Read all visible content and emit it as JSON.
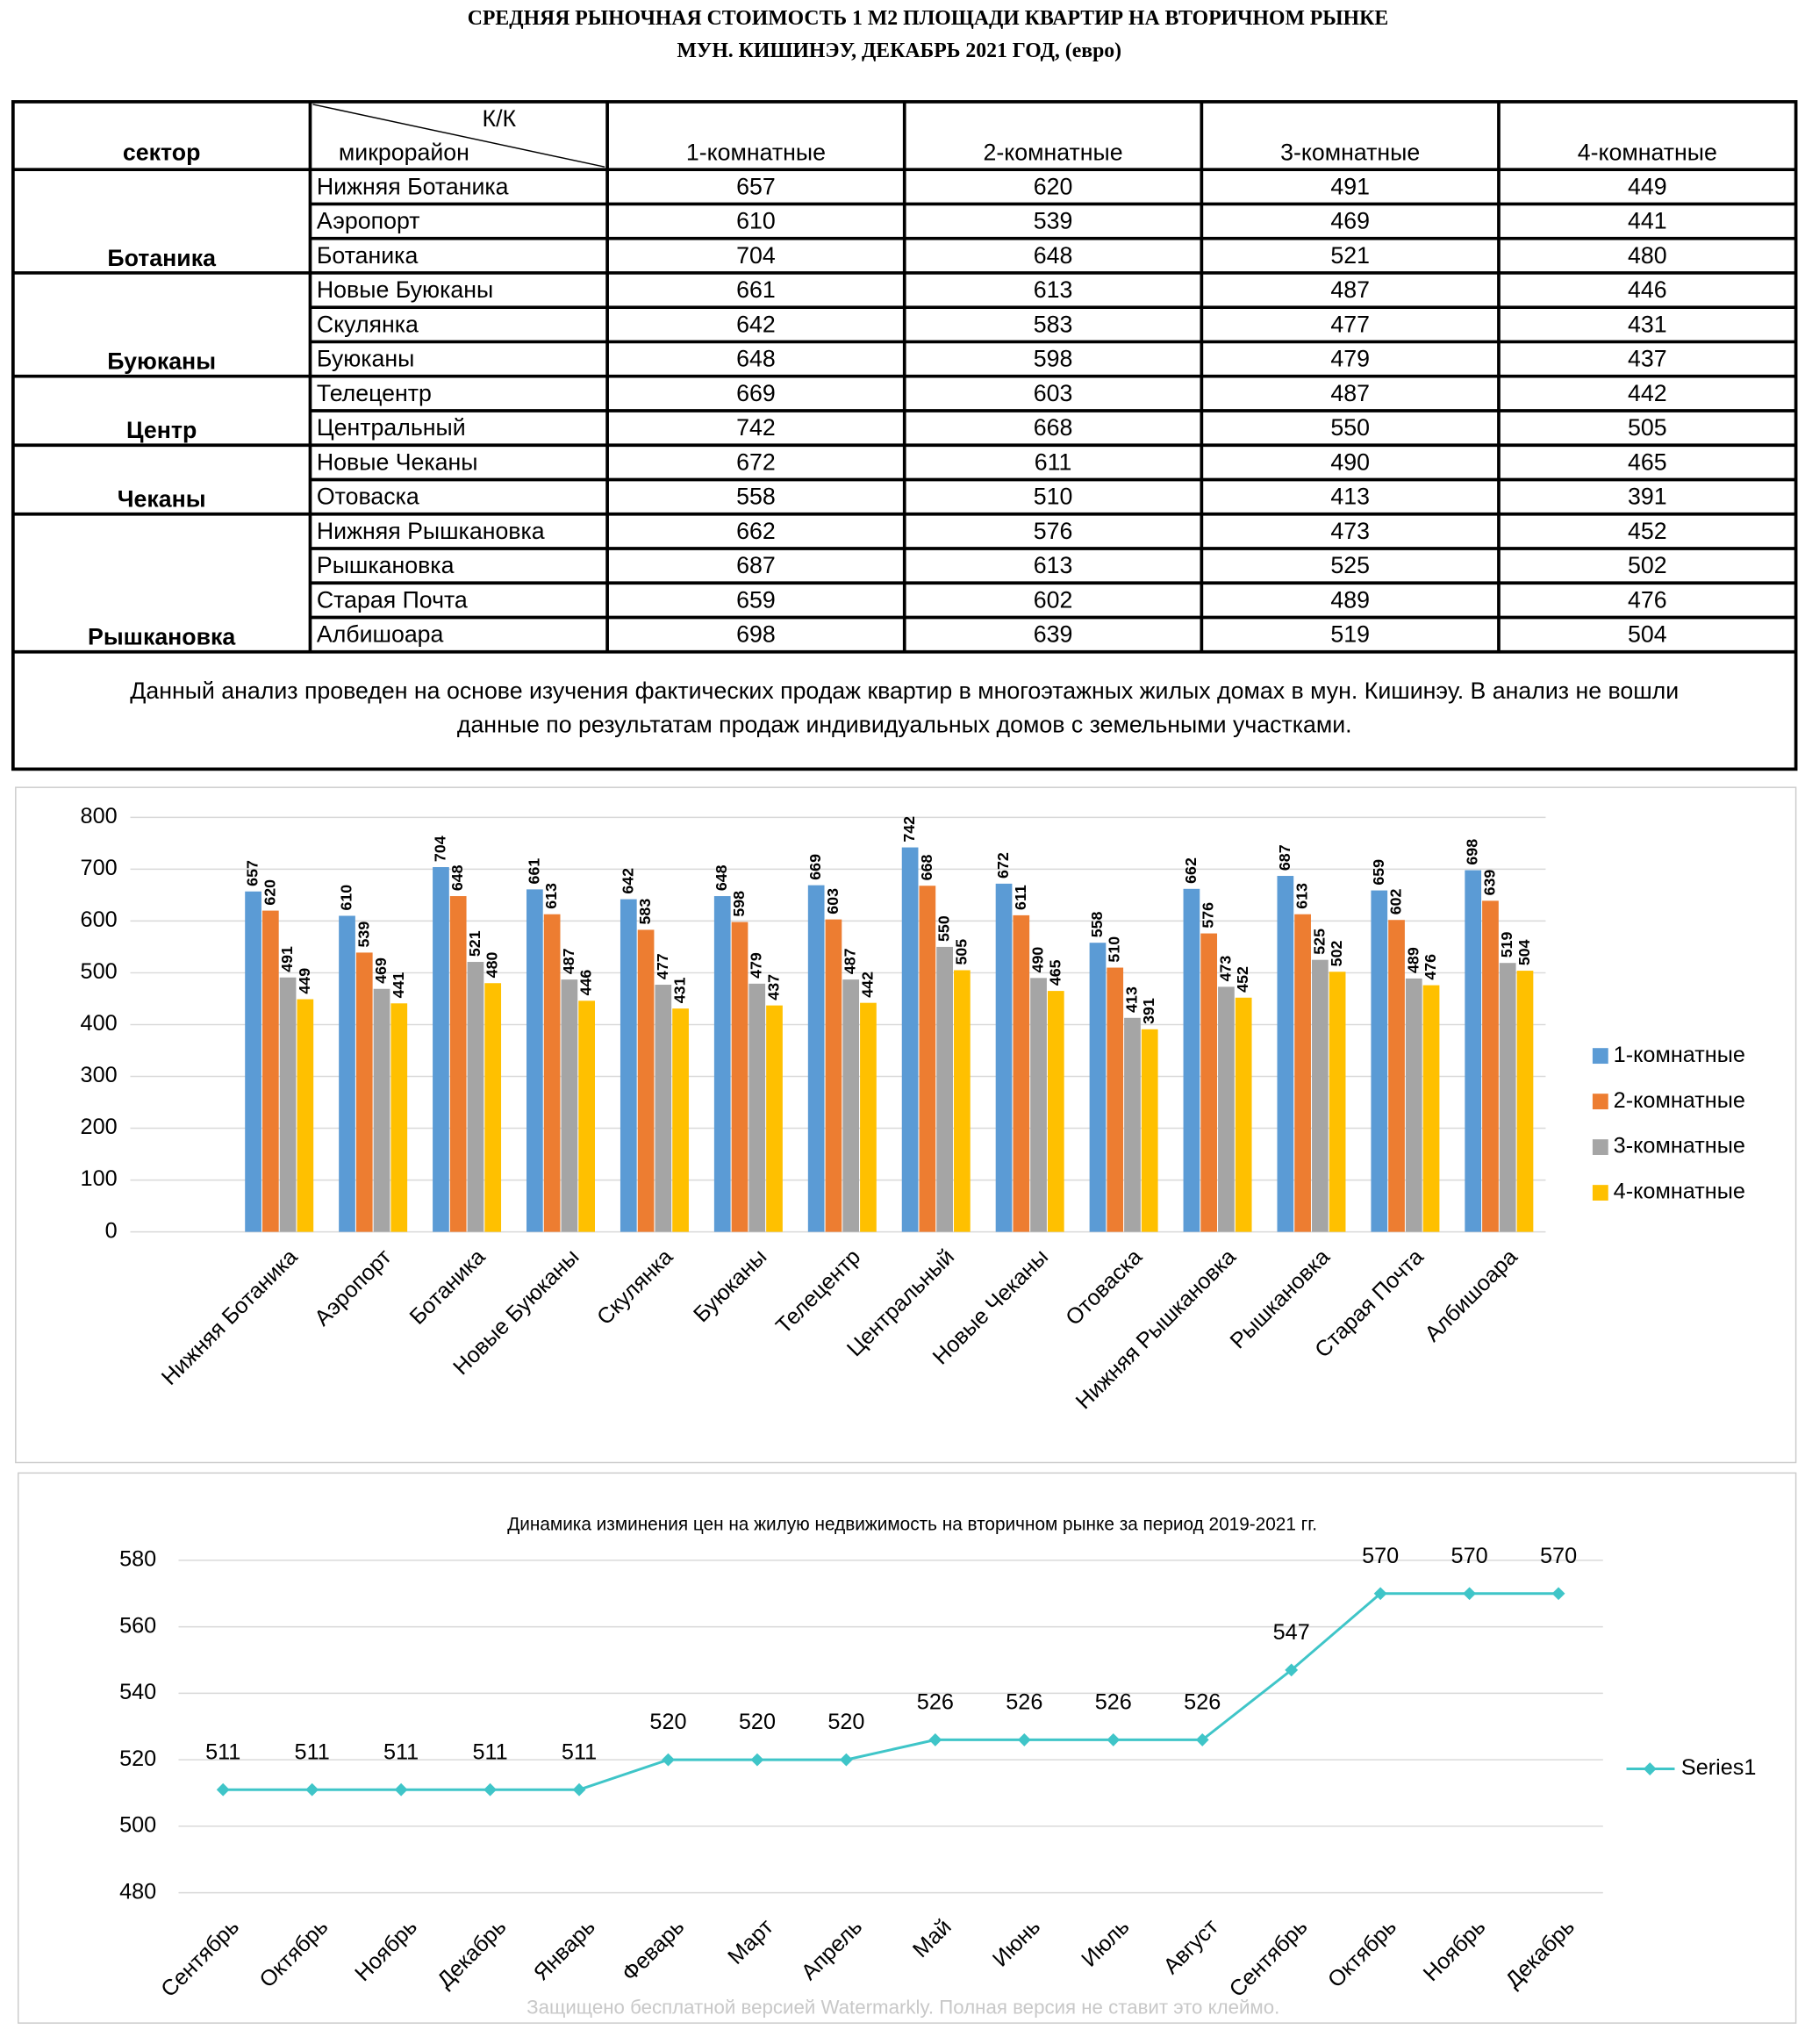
{
  "title": [
    "СРЕДНЯЯ  РЫНОЧНАЯ  СТОИМОСТЬ  1 М2  ПЛОЩАДИ  КВАРТИР НА ВТОРИЧНОМ РЫНКЕ",
    "МУН.  КИШИНЭУ, ДЕКАБРЬ 2021 ГОД, (евро)"
  ],
  "table": {
    "header": [
      "сектор",
      "К/К",
      "микрорайон",
      "1-комнатные",
      "2-комнатные",
      "3-комнатные",
      "4-комнатные"
    ],
    "groups": [
      {
        "sector": "Ботаника",
        "rows": [
          [
            "Нижняя Ботаника",
            657,
            620,
            491,
            449
          ],
          [
            "Аэропорт",
            610,
            539,
            469,
            441
          ],
          [
            "Ботаника",
            704,
            648,
            521,
            480
          ]
        ]
      },
      {
        "sector": "Буюканы",
        "rows": [
          [
            "Новые Буюканы",
            661,
            613,
            487,
            446
          ],
          [
            "Скулянка",
            642,
            583,
            477,
            431
          ],
          [
            "Буюканы",
            648,
            598,
            479,
            437
          ]
        ]
      },
      {
        "sector": "Центр",
        "rows": [
          [
            "Телецентр",
            669,
            603,
            487,
            442
          ],
          [
            "Центральный",
            742,
            668,
            550,
            505
          ]
        ]
      },
      {
        "sector": "Чеканы",
        "rows": [
          [
            "Новые Чеканы",
            672,
            611,
            490,
            465
          ],
          [
            "Отоваска",
            558,
            510,
            413,
            391
          ]
        ]
      },
      {
        "sector": "Рышкановка",
        "rows": [
          [
            "Нижняя Рышкановка",
            662,
            576,
            473,
            452
          ],
          [
            "Рышкановка",
            687,
            613,
            525,
            502
          ],
          [
            "Старая Почта",
            659,
            602,
            489,
            476
          ],
          [
            "Албишоара",
            698,
            639,
            519,
            504
          ]
        ]
      }
    ],
    "note": [
      "Данный анализ проведен на основе изучения фактических продаж квартир в многоэтажных жилых домах в мун. Кишинэу. В анализ не вошли",
      "данные по результатам  продаж индивидуальных домов с земельными участками."
    ]
  },
  "chart_data": [
    {
      "type": "bar",
      "categories": [
        "Нижняя Ботаника",
        "Аэропорт",
        "Ботаника",
        "Новые Буюканы",
        "Скулянка",
        "Буюканы",
        "Телецентр",
        "Центральный",
        "Новые Чеканы",
        "Отоваска",
        "Нижняя Рышкановка",
        "Рышкановка",
        "Старая Почта",
        "Албишоара"
      ],
      "series": [
        {
          "name": "1-комнатные",
          "color": "#5b9bd5",
          "values": [
            657,
            610,
            704,
            661,
            642,
            648,
            669,
            742,
            672,
            558,
            662,
            687,
            659,
            698
          ]
        },
        {
          "name": "2-комнатные",
          "color": "#ed7d31",
          "values": [
            620,
            539,
            648,
            613,
            583,
            598,
            603,
            668,
            611,
            510,
            576,
            613,
            602,
            639
          ]
        },
        {
          "name": "3-комнатные",
          "color": "#a5a5a5",
          "values": [
            491,
            469,
            521,
            487,
            477,
            479,
            487,
            550,
            490,
            413,
            473,
            525,
            489,
            519
          ]
        },
        {
          "name": "4-комнатные",
          "color": "#ffc000",
          "values": [
            449,
            441,
            480,
            446,
            431,
            437,
            442,
            505,
            465,
            391,
            452,
            502,
            476,
            504
          ]
        }
      ],
      "ylim": [
        0,
        800
      ],
      "yticks": [
        0,
        100,
        200,
        300,
        400,
        500,
        600,
        700,
        800
      ],
      "grid": true,
      "legend": "right"
    },
    {
      "type": "line",
      "title": "Динамика изминения цен на жилую недвижимость на вторичном рынке за период 2019-2021 гг.",
      "categories": [
        "Сентябрь",
        "Октябрь",
        "Ноябрь",
        "Декабрь",
        "Январь",
        "Феварь",
        "Март",
        "Апрель",
        "Май",
        "Июнь",
        "Июль",
        "Август",
        "Сентябрь",
        "Октябрь",
        "Ноябрь",
        "Декабрь"
      ],
      "series": [
        {
          "name": "Series1",
          "color": "#3fc5c8",
          "values": [
            511,
            511,
            511,
            511,
            511,
            520,
            520,
            520,
            526,
            526,
            526,
            526,
            547,
            570,
            570,
            570
          ]
        }
      ],
      "ylim": [
        480,
        580
      ],
      "yticks": [
        480,
        500,
        520,
        540,
        560,
        580
      ],
      "grid": true,
      "legend": "right"
    }
  ],
  "watermark": "Защищено бесплатной версией Watermarkly. Полная версия не ставит это клеймо."
}
